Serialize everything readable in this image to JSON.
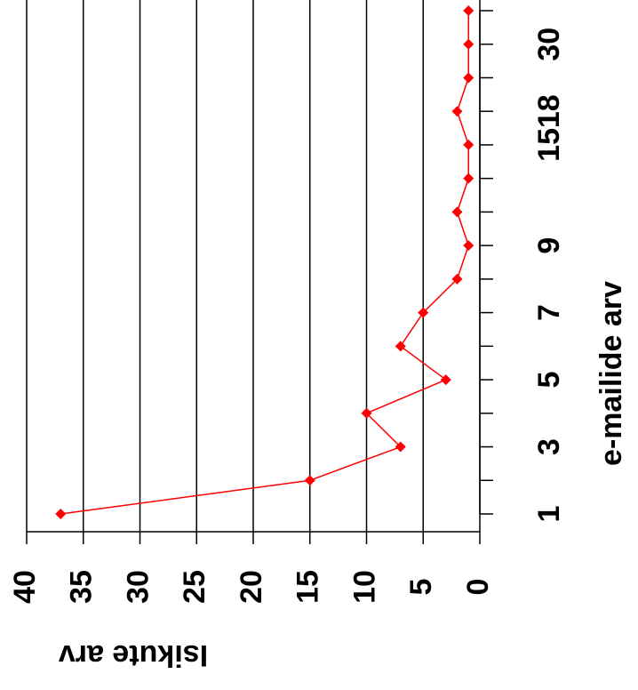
{
  "chart_data": {
    "type": "line",
    "x_label": "e-mailide arv",
    "y_label": "Isikute arv",
    "categories": [
      "1",
      null,
      "3",
      null,
      "5",
      null,
      "7",
      null,
      "9",
      null,
      null,
      "15",
      "18",
      null,
      "30",
      null
    ],
    "series": [
      {
        "name": "Isikute arv",
        "color": "#ff0000",
        "values": [
          37,
          15,
          7,
          10,
          3,
          7,
          5,
          2,
          1,
          2,
          1,
          1,
          2,
          1,
          1,
          1
        ]
      }
    ],
    "ylim": [
      0,
      40
    ],
    "yticks": [
      0,
      5,
      10,
      15,
      20,
      25,
      30,
      35,
      40
    ],
    "grid": true
  }
}
